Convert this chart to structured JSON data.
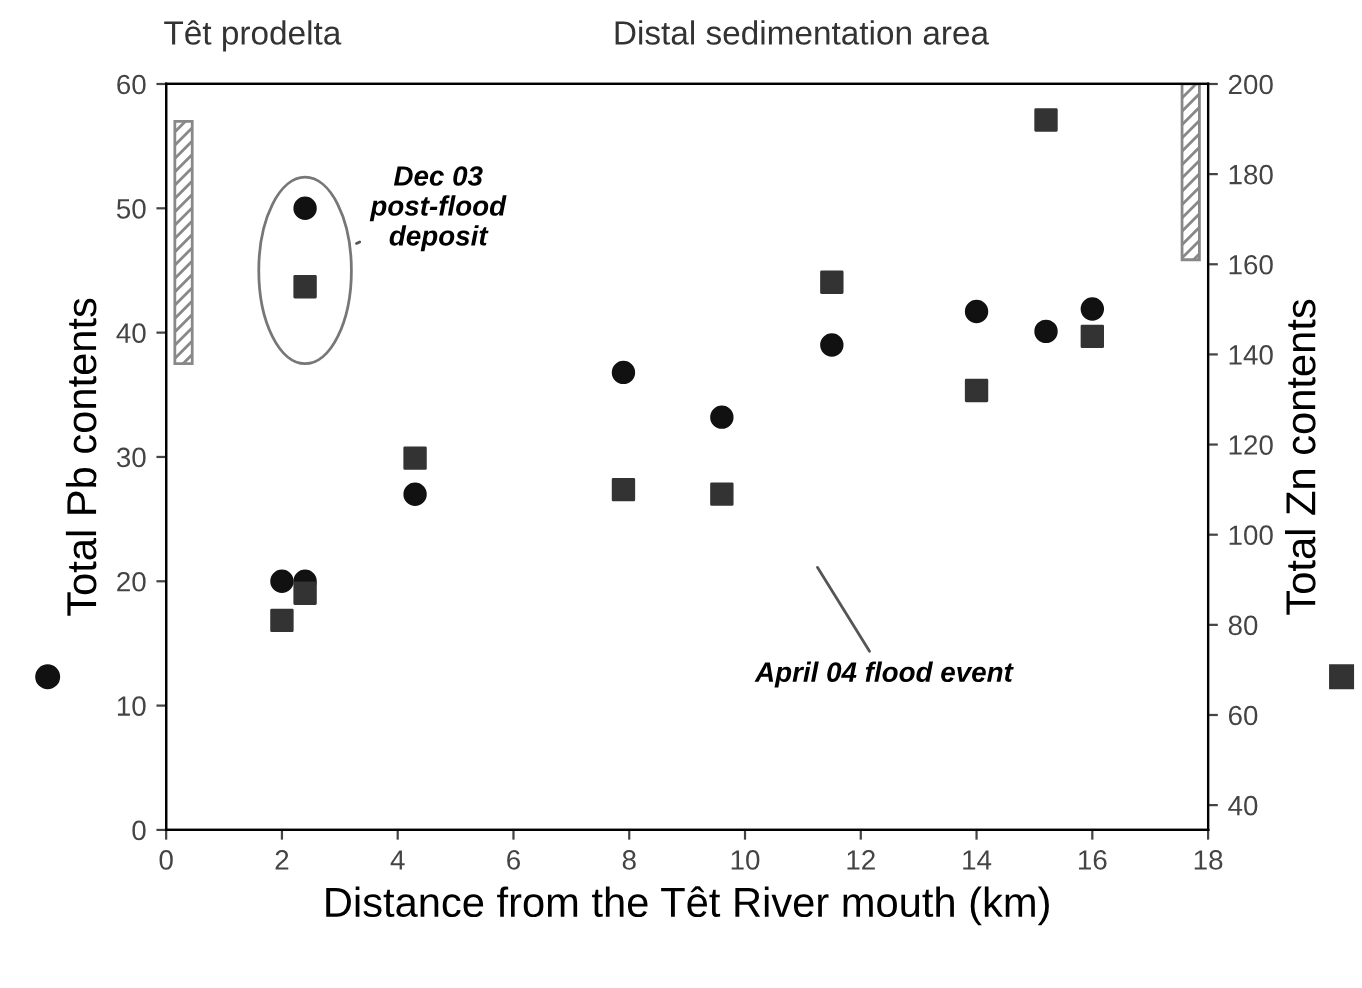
{
  "chart_data": {
    "type": "scatter",
    "xlabel": "Distance from the Têt River mouth (km)",
    "ylabel": "Total Pb contents",
    "y2label": "Total Zn contents",
    "xlim": [
      0,
      18
    ],
    "xticks": [
      0,
      2,
      4,
      6,
      8,
      10,
      12,
      14,
      16,
      18
    ],
    "ylim": [
      0,
      60
    ],
    "yticks": [
      0,
      10,
      20,
      30,
      40,
      50,
      60
    ],
    "y2lim": [
      34.5,
      200
    ],
    "y2ticks": [
      40,
      60,
      80,
      100,
      120,
      140,
      160,
      180,
      200
    ],
    "grid": false,
    "legend": false,
    "series": [
      {
        "marker": "circle",
        "color": "#111111",
        "x": [
          2.0,
          2.4,
          2.4,
          4.3,
          7.9,
          9.6,
          11.5,
          14.0,
          15.2,
          16.0
        ],
        "values": [
          20,
          20,
          50,
          27,
          36.8,
          33.2,
          39,
          41.7,
          40.1,
          41.9
        ]
      },
      {
        "marker": "square",
        "axis": "y2",
        "color": "#333333",
        "x": [
          2.0,
          2.4,
          2.4,
          4.3,
          7.9,
          9.6,
          11.5,
          14.0,
          15.2,
          16.0
        ],
        "values": [
          81,
          87,
          155,
          117,
          110,
          109,
          156,
          132,
          192,
          144
        ]
      },
      {
        "type": "bar",
        "color": "#888888",
        "x": [
          0.3
        ],
        "base": [
          37.5
        ],
        "values": [
          19.5
        ]
      },
      {
        "type": "bar",
        "axis": "y2",
        "color": "#888888",
        "x": [
          17.7
        ],
        "base": [
          161
        ],
        "values": [
          39
        ]
      }
    ],
    "annotations": [
      "Têt prodelta",
      "Distal sedimentation area",
      {
        "text": "Dec 03\npost-flood\ndeposit",
        "x": 2.4,
        "y": 45
      },
      "April 04 flood event"
    ]
  }
}
